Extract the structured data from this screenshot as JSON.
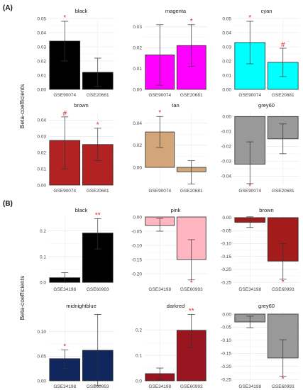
{
  "figure": {
    "sections": [
      {
        "label": "(A)",
        "ylabel": "Beta-coefficients"
      },
      {
        "label": "(B)",
        "ylabel": "Beta-coefficients"
      }
    ]
  },
  "chart_data": [
    {
      "type": "bar",
      "section": "(A)",
      "title": "black",
      "color": "#000000",
      "categories": [
        "GSE90074",
        "GSE20681"
      ],
      "values": [
        0.034,
        0.012
      ],
      "ci_low": [
        0.02,
        0.002
      ],
      "ci_high": [
        0.048,
        0.022
      ],
      "signif": [
        "*",
        ""
      ],
      "ylim": [
        0,
        0.05
      ],
      "yticks": [
        0,
        0.01,
        0.02,
        0.03,
        0.04,
        0.05
      ],
      "ytick_labels": [
        "0.00",
        "0.01",
        "0.02",
        "0.03",
        "0.04",
        "0.05"
      ]
    },
    {
      "type": "bar",
      "section": "(A)",
      "title": "magenta",
      "color": "#ff00ff",
      "categories": [
        "GSE90074",
        "GSE20681"
      ],
      "values": [
        0.0165,
        0.021
      ],
      "ci_low": [
        0.002,
        0.011
      ],
      "ci_high": [
        0.031,
        0.031
      ],
      "signif": [
        "",
        "*"
      ],
      "ylim": [
        0,
        0.034
      ],
      "yticks": [
        0,
        0.01,
        0.02,
        0.03
      ],
      "ytick_labels": [
        "0.00",
        "0.01",
        "0.02",
        "0.03"
      ]
    },
    {
      "type": "bar",
      "section": "(A)",
      "title": "cyan",
      "color": "#00ffff",
      "categories": [
        "GSE90074",
        "GSE20681"
      ],
      "values": [
        0.033,
        0.019
      ],
      "ci_low": [
        0.018,
        0.009
      ],
      "ci_high": [
        0.048,
        0.029
      ],
      "signif": [
        "*",
        "#"
      ],
      "ylim": [
        0,
        0.05
      ],
      "yticks": [
        0,
        0.01,
        0.02,
        0.03,
        0.04,
        0.05
      ],
      "ytick_labels": [
        "0.00",
        "0.01",
        "0.02",
        "0.03",
        "0.04",
        "0.05"
      ]
    },
    {
      "type": "bar",
      "section": "(A)",
      "title": "brown",
      "color": "#b22222",
      "categories": [
        "GSE90074",
        "GSE20681"
      ],
      "values": [
        0.0275,
        0.025
      ],
      "ci_low": [
        0.01,
        0.015
      ],
      "ci_high": [
        0.042,
        0.035
      ],
      "signif": [
        "#",
        "*"
      ],
      "ylim": [
        0,
        0.045
      ],
      "yticks": [
        0,
        0.01,
        0.02,
        0.03,
        0.04
      ],
      "ytick_labels": [
        "0.00",
        "0.01",
        "0.02",
        "0.03",
        "0.04"
      ]
    },
    {
      "type": "bar",
      "section": "(A)",
      "title": "tan",
      "color": "#d2a679",
      "categories": [
        "GSE90074",
        "GSE20681"
      ],
      "values": [
        0.032,
        -0.004
      ],
      "ci_low": [
        0.018,
        -0.015
      ],
      "ci_high": [
        0.046,
        0.006
      ],
      "signif": [
        "*",
        ""
      ],
      "ylim": [
        -0.016,
        0.05
      ],
      "yticks": [
        0,
        0.02,
        0.04
      ],
      "ytick_labels": [
        "0.00",
        "0.02",
        "0.04"
      ]
    },
    {
      "type": "bar",
      "section": "(A)",
      "title": "grey60",
      "color": "#999999",
      "categories": [
        "GSE90074",
        "GSE20681"
      ],
      "values": [
        -0.032,
        -0.015
      ],
      "ci_low": [
        -0.045,
        -0.025
      ],
      "ci_high": [
        -0.017,
        -0.005
      ],
      "signif": [
        "*",
        ""
      ],
      "ylim": [
        -0.046,
        0.003
      ],
      "yticks": [
        0,
        -0.01,
        -0.02,
        -0.03,
        -0.04
      ],
      "ytick_labels": [
        "0.00",
        "-0.01",
        "-0.02",
        "-0.03",
        "-0.04"
      ]
    },
    {
      "type": "bar",
      "section": "(B)",
      "title": "black",
      "color": "#000000",
      "categories": [
        "GSE34198",
        "GSE60993"
      ],
      "values": [
        0.018,
        0.192
      ],
      "ci_low": [
        0.0,
        0.13
      ],
      "ci_high": [
        0.038,
        0.248
      ],
      "signif": [
        "",
        "**"
      ],
      "ylim": [
        -0.005,
        0.26
      ],
      "yticks": [
        0,
        0.1,
        0.2
      ],
      "ytick_labels": [
        "0.0",
        "0.1",
        "0.2"
      ]
    },
    {
      "type": "bar",
      "section": "(B)",
      "title": "pink",
      "color": "#ffb6c1",
      "categories": [
        "GSE34198",
        "GSE60993"
      ],
      "values": [
        -0.03,
        -0.15
      ],
      "ci_low": [
        -0.05,
        -0.222
      ],
      "ci_high": [
        -0.005,
        -0.08
      ],
      "signif": [
        "",
        "*"
      ],
      "ylim": [
        -0.235,
        0.005
      ],
      "yticks": [
        0,
        -0.05,
        -0.1,
        -0.15,
        -0.2
      ],
      "ytick_labels": [
        "0.00",
        "-0.05",
        "-0.10",
        "-0.15",
        "-0.20"
      ]
    },
    {
      "type": "bar",
      "section": "(B)",
      "title": "brown",
      "color": "#a31b1b",
      "categories": [
        "GSE34198",
        "GSE60993"
      ],
      "values": [
        -0.018,
        -0.168
      ],
      "ci_low": [
        -0.038,
        -0.238
      ],
      "ci_high": [
        0.003,
        -0.1
      ],
      "signif": [
        "",
        "*"
      ],
      "ylim": [
        -0.255,
        0.008
      ],
      "yticks": [
        0,
        -0.05,
        -0.1,
        -0.15,
        -0.2,
        -0.25
      ],
      "ytick_labels": [
        "0.00",
        "-0.05",
        "-0.10",
        "-0.15",
        "-0.20",
        "-0.25"
      ]
    },
    {
      "type": "bar",
      "section": "(B)",
      "title": "midnightblue",
      "color": "#10265c",
      "categories": [
        "GSE34198",
        "GSE60993"
      ],
      "values": [
        0.045,
        0.062
      ],
      "ci_low": [
        0.025,
        -0.01
      ],
      "ci_high": [
        0.063,
        0.135
      ],
      "signif": [
        "*",
        ""
      ],
      "ylim": [
        0,
        0.14
      ],
      "yticks": [
        0,
        0.05,
        0.1
      ],
      "ytick_labels": [
        "0.00",
        "0.05",
        "0.10"
      ]
    },
    {
      "type": "bar",
      "section": "(B)",
      "title": "darkred",
      "color": "#991520",
      "categories": [
        "GSE34198",
        "GSE60993"
      ],
      "values": [
        0.028,
        0.198
      ],
      "ci_low": [
        0.005,
        0.13
      ],
      "ci_high": [
        0.05,
        0.26
      ],
      "signif": [
        "",
        "**"
      ],
      "ylim": [
        0,
        0.27
      ],
      "yticks": [
        0,
        0.1,
        0.2
      ],
      "ytick_labels": [
        "0.0",
        "0.1",
        "0.2"
      ]
    },
    {
      "type": "bar",
      "section": "(B)",
      "title": "grey60",
      "color": "#999999",
      "categories": [
        "GSE34198",
        "GSE60993"
      ],
      "values": [
        -0.03,
        -0.168
      ],
      "ci_low": [
        -0.052,
        -0.238
      ],
      "ci_high": [
        -0.008,
        -0.098
      ],
      "signif": [
        "",
        "*"
      ],
      "ylim": [
        -0.255,
        0.008
      ],
      "yticks": [
        0,
        -0.05,
        -0.1,
        -0.15,
        -0.2,
        -0.25
      ],
      "ytick_labels": [
        "0.00",
        "-0.05",
        "-0.10",
        "-0.15",
        "-0.20",
        "-0.25"
      ]
    }
  ]
}
